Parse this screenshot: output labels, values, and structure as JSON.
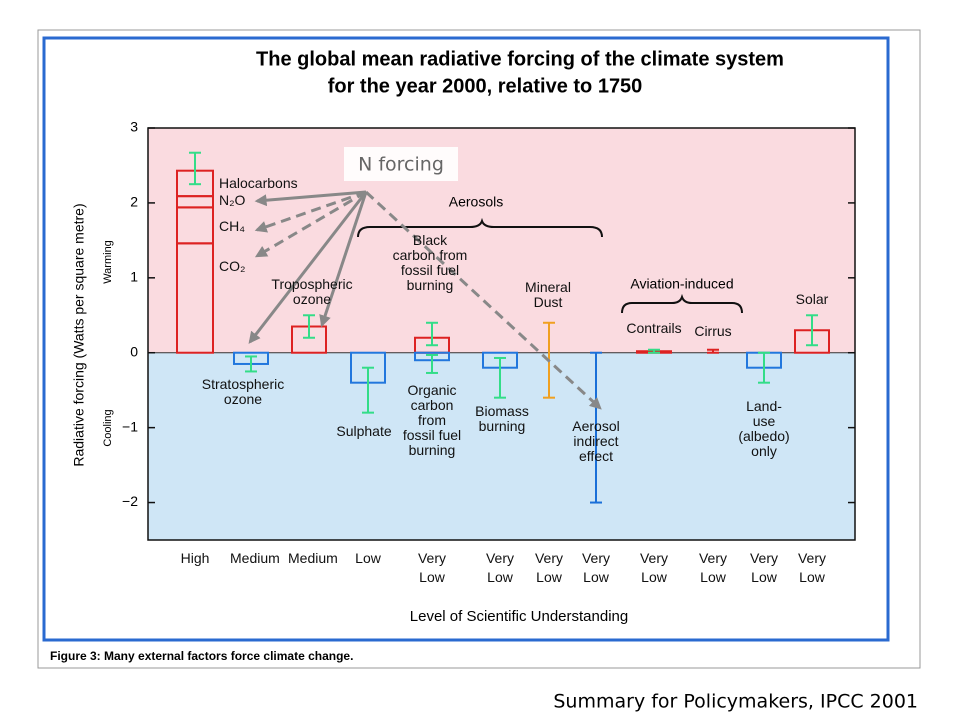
{
  "chart_data": {
    "type": "bar",
    "title": [
      "The global mean radiative forcing of the climate system",
      "for the year 2000, relative to 1750"
    ],
    "y_label": "Radiative forcing (Watts per square metre)",
    "warming_label": "Warming",
    "cooling_label": "Cooling",
    "x_label": "Level of Scientific Understanding",
    "caption": "Figure 3: Many external factors force climate change.",
    "source": "Summary for Policymakers, IPCC 2001",
    "callout": "N forcing",
    "groups": [
      {
        "label": "Aerosols"
      },
      {
        "label": "Aviation-induced"
      }
    ],
    "ylim": [
      -2.5,
      3
    ],
    "yticks": [
      {
        "value": -2,
        "label": "−2"
      },
      {
        "value": -1,
        "label": "−1"
      },
      0,
      1,
      2,
      3
    ],
    "grid": false,
    "positive_color": "#dd2222",
    "negative_color": "#2277dd",
    "range_color": "#33dd88",
    "categories": [
      "High",
      "Medium",
      "Medium",
      "Low",
      "Very Low",
      "Very Low",
      "Very Low",
      "Very Low",
      "Very Low",
      "Very Low",
      "Very Low",
      "Very Low"
    ],
    "forcings": [
      {
        "stacked": true,
        "bars": [
          {
            "name": "CO₂",
            "value": 1.46
          },
          {
            "name": "CH₄",
            "value": 0.48
          },
          {
            "name": "N₂O",
            "value": 0.15
          },
          {
            "name": "Halocarbons",
            "value": 0.34
          }
        ],
        "range": [
          2.25,
          2.67
        ]
      },
      {
        "name": "Stratospheric ozone",
        "bars": [
          {
            "value": -0.15
          }
        ],
        "range": [
          -0.25,
          -0.05
        ]
      },
      {
        "name": "Tropospheric ozone",
        "bars": [
          {
            "value": 0.35
          }
        ],
        "range": [
          0.2,
          0.5
        ]
      },
      {
        "name": "Sulphate",
        "bars": [
          {
            "value": -0.4
          }
        ],
        "range": [
          -0.8,
          -0.2
        ]
      },
      {
        "bars": [
          {
            "name": "Black carbon from fossil fuel burning",
            "value": 0.2,
            "range": [
              0.1,
              0.4
            ]
          },
          {
            "name": "Organic carbon from fossil fuel burning",
            "value": -0.1,
            "range": [
              -0.27,
              -0.03
            ]
          }
        ]
      },
      {
        "name": "Biomass burning",
        "bars": [
          {
            "value": -0.2
          }
        ],
        "range": [
          -0.6,
          -0.07
        ]
      },
      {
        "name": "Mineral Dust",
        "bars": [],
        "range": [
          -0.6,
          0.4
        ],
        "range_color": "#f0a020"
      },
      {
        "name": "Aerosol indirect effect",
        "bars": [],
        "range": [
          -2,
          0
        ],
        "range_color": "#1a6fd8"
      },
      {
        "name": "Contrails",
        "bars": [
          {
            "value": 0.02
          }
        ],
        "range": [
          0,
          0.04
        ]
      },
      {
        "name": "Cirrus",
        "bars": [],
        "range": [
          0,
          0.04
        ],
        "range_color": "#dd2222"
      },
      {
        "name": "Land-use (albedo) only",
        "bars": [
          {
            "value": -0.2
          }
        ],
        "range": [
          -0.4,
          0
        ]
      },
      {
        "name": "Solar",
        "bars": [
          {
            "value": 0.3
          }
        ],
        "range": [
          0.1,
          0.5
        ]
      }
    ]
  }
}
